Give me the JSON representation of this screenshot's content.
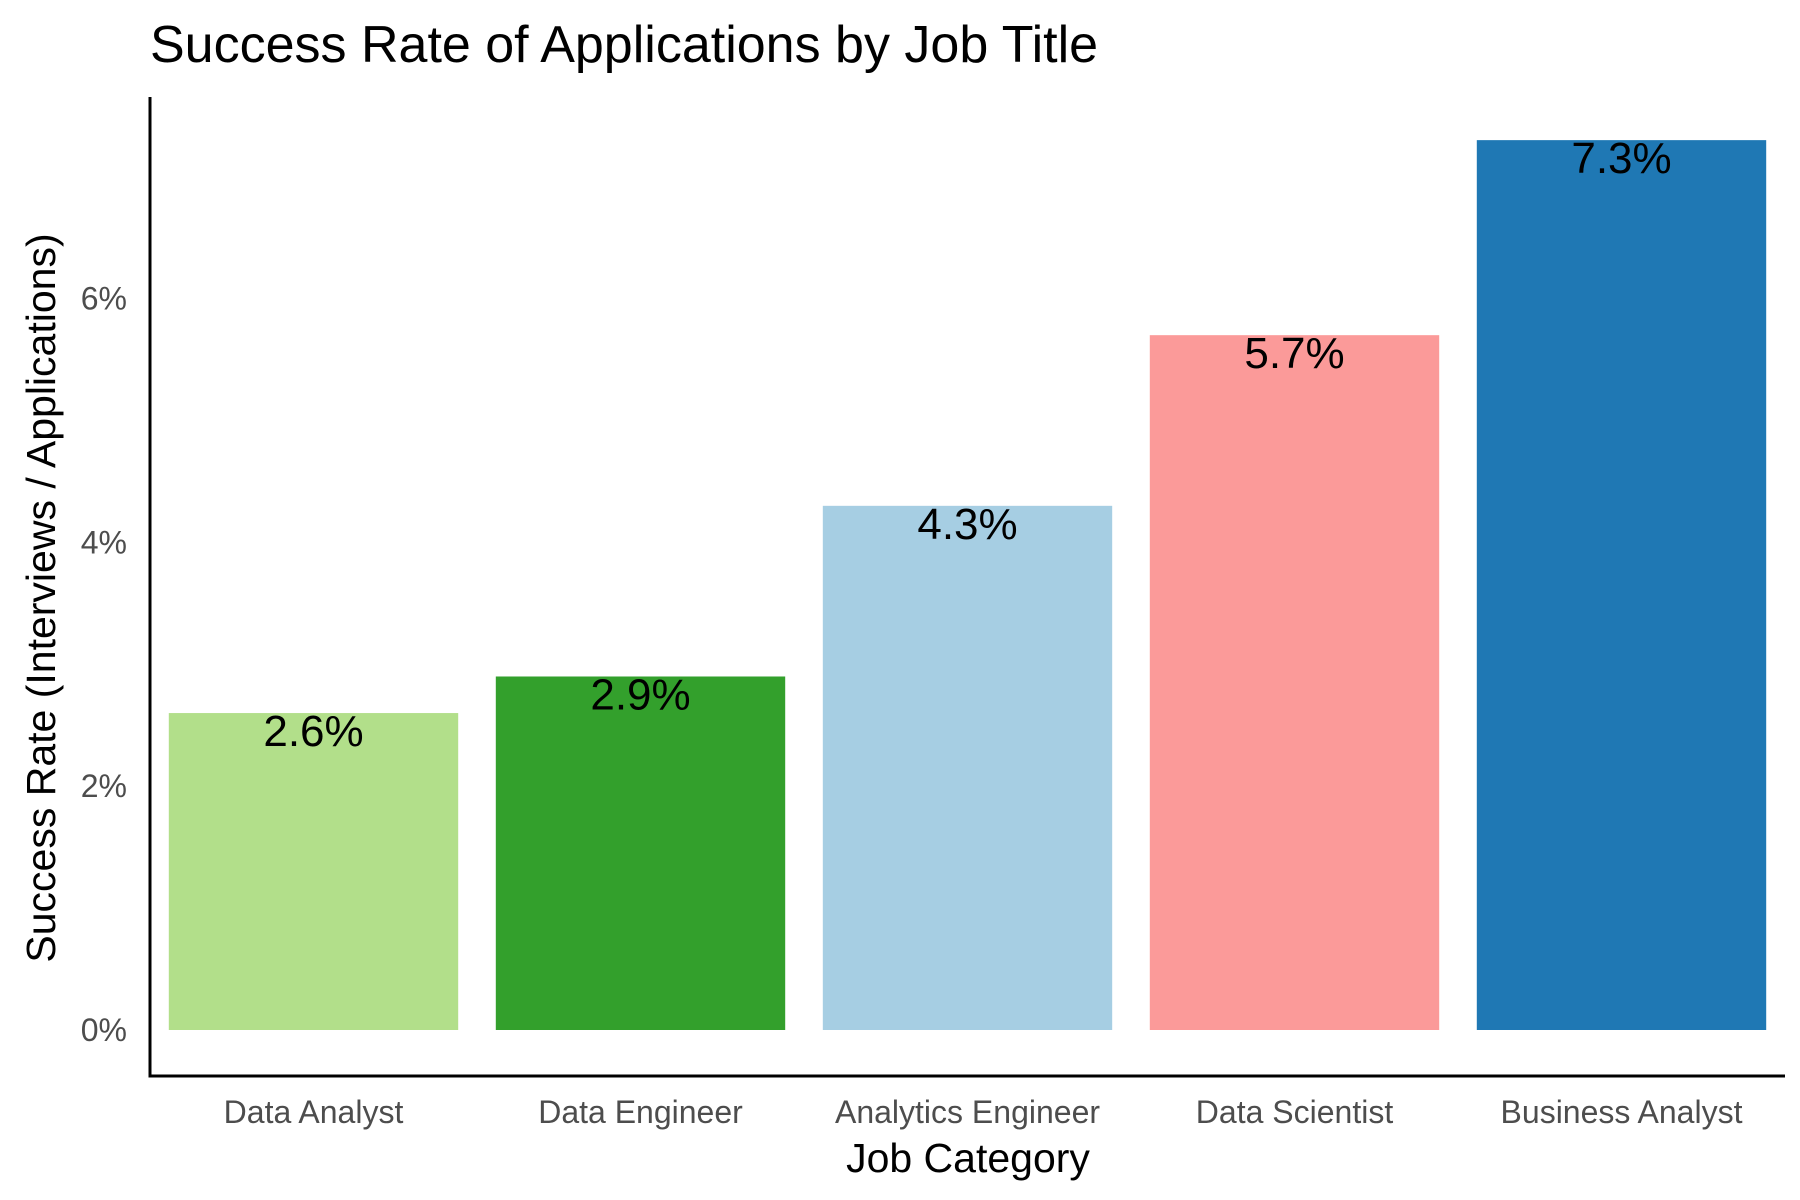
{
  "chart_data": {
    "type": "bar",
    "title": "Success Rate of Applications by Job Title",
    "xlabel": "Job Category",
    "ylabel": "Success Rate (Interviews / Applications)",
    "categories": [
      "Data Analyst",
      "Data Engineer",
      "Analytics Engineer",
      "Data Scientist",
      "Business Analyst"
    ],
    "values": [
      2.6,
      2.9,
      4.3,
      5.7,
      7.3
    ],
    "data_labels": [
      "2.6%",
      "2.9%",
      "4.3%",
      "5.7%",
      "7.3%"
    ],
    "colors": [
      "#b2df8a",
      "#33a02c",
      "#a6cee3",
      "#fb9a99",
      "#1f78b4"
    ],
    "ylim": [
      0,
      8
    ],
    "yticks": [
      0,
      2,
      4,
      6
    ],
    "ytick_labels": [
      "0%",
      "2%",
      "4%",
      "6%"
    ],
    "grid": false,
    "legend": "none"
  }
}
